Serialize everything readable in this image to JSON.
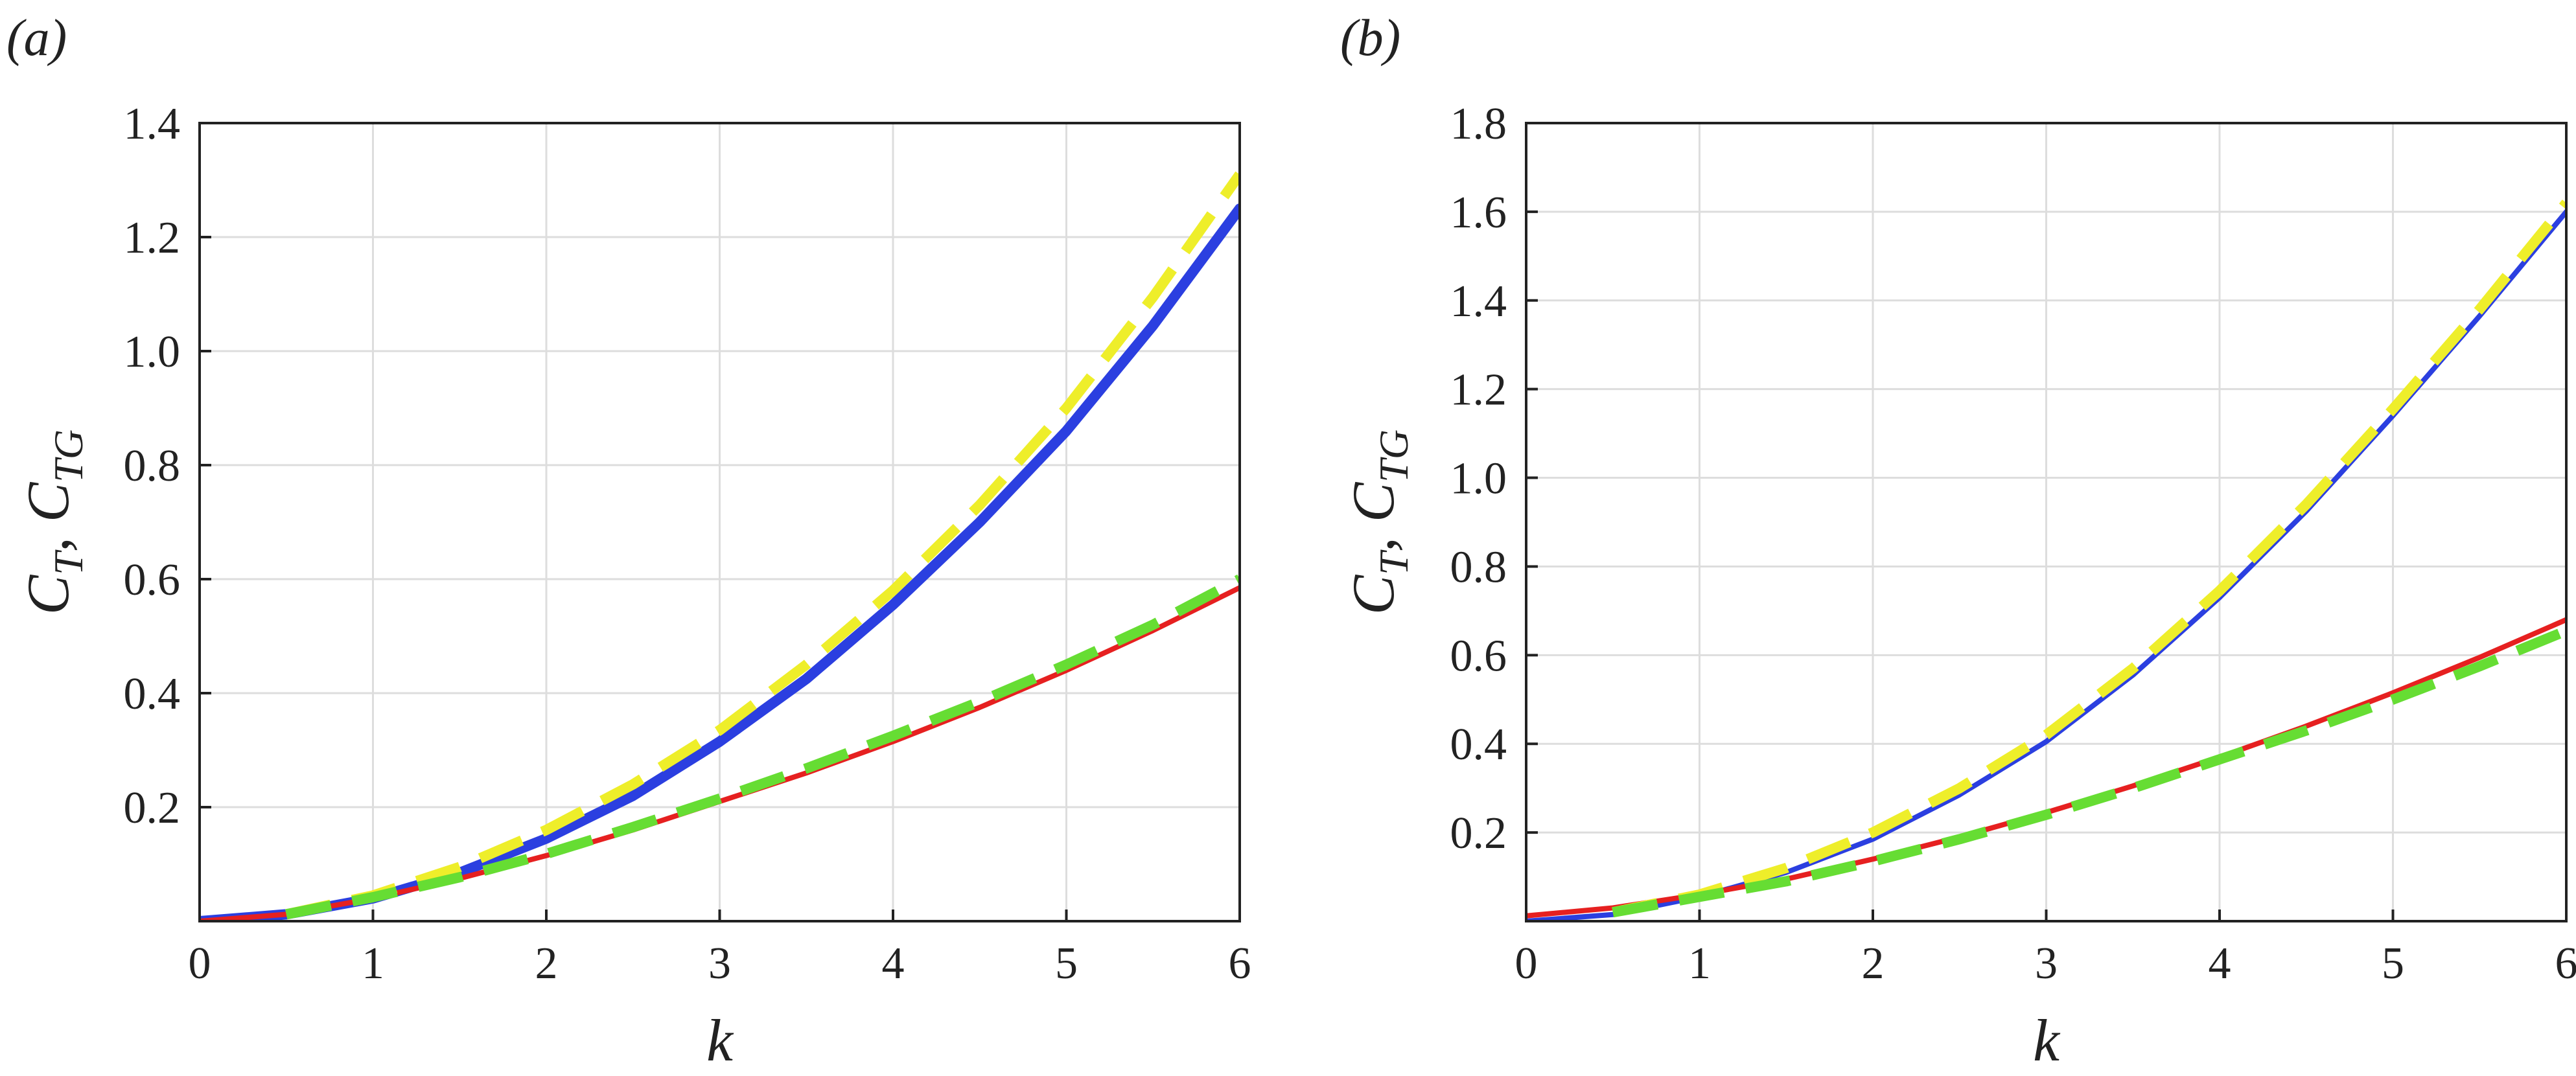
{
  "chart_data": [
    {
      "type": "line",
      "panel_label": "(a)",
      "xlabel": "k",
      "ylabel": {
        "parts": [
          {
            "base": "C",
            "sub": "T"
          },
          {
            "base": ", C",
            "sub": "TG"
          }
        ]
      },
      "xlim": [
        0,
        6
      ],
      "ylim": [
        0,
        1.4
      ],
      "xticks": [
        0,
        1,
        2,
        3,
        4,
        5,
        6
      ],
      "yticks": [
        0.2,
        0.4,
        0.6,
        0.8,
        1.0,
        1.2,
        1.4
      ],
      "xtick_labels": [
        "0",
        "1",
        "2",
        "3",
        "4",
        "5",
        "6"
      ],
      "ytick_labels": [
        "0.2",
        "0.4",
        "0.6",
        "0.8",
        "1.0",
        "1.2",
        "1.4"
      ],
      "grid": true,
      "series": [
        {
          "color": "#2b3fe0",
          "style": "solid",
          "width": 16,
          "x": [
            0,
            0.5,
            1,
            1.5,
            2,
            2.5,
            3,
            3.5,
            4,
            4.5,
            5,
            5.5,
            6
          ],
          "y": [
            0,
            0.012,
            0.04,
            0.085,
            0.145,
            0.22,
            0.315,
            0.425,
            0.555,
            0.7,
            0.86,
            1.045,
            1.25
          ]
        },
        {
          "color": "#e62020",
          "style": "solid",
          "width": 8,
          "x": [
            0,
            0.5,
            1,
            1.5,
            2,
            2.5,
            3,
            3.5,
            4,
            4.5,
            5,
            5.5,
            6
          ],
          "y": [
            0,
            0.012,
            0.04,
            0.075,
            0.115,
            0.16,
            0.21,
            0.26,
            0.315,
            0.375,
            0.44,
            0.51,
            0.585
          ]
        },
        {
          "color": "#eeee2a",
          "style": "dashed",
          "width": 16,
          "x": [
            0.5,
            1,
            1.5,
            2,
            2.5,
            3,
            3.5,
            4,
            4.5,
            5,
            5.5,
            6
          ],
          "y": [
            0.012,
            0.045,
            0.095,
            0.16,
            0.24,
            0.335,
            0.45,
            0.58,
            0.73,
            0.9,
            1.095,
            1.31
          ]
        },
        {
          "color": "#66dd33",
          "style": "dashed",
          "width": 16,
          "x": [
            0.5,
            1,
            1.5,
            2,
            2.5,
            3,
            3.5,
            4,
            4.5,
            5,
            5.5,
            6
          ],
          "y": [
            0.012,
            0.042,
            0.077,
            0.118,
            0.165,
            0.215,
            0.268,
            0.325,
            0.385,
            0.45,
            0.52,
            0.6
          ]
        }
      ]
    },
    {
      "type": "line",
      "panel_label": "(b)",
      "xlabel": "k",
      "ylabel": {
        "parts": [
          {
            "base": "C",
            "sub": "T"
          },
          {
            "base": ", C",
            "sub": "TG"
          }
        ]
      },
      "xlim": [
        0,
        6
      ],
      "ylim": [
        0,
        1.8
      ],
      "xticks": [
        0,
        1,
        2,
        3,
        4,
        5,
        6
      ],
      "yticks": [
        0.2,
        0.4,
        0.6,
        0.8,
        1.0,
        1.2,
        1.4,
        1.6,
        1.8
      ],
      "xtick_labels": [
        "0",
        "1",
        "2",
        "3",
        "4",
        "5",
        "6"
      ],
      "ytick_labels": [
        "0.2",
        "0.4",
        "0.6",
        "0.8",
        "1.0",
        "1.2",
        "1.4",
        "1.6",
        "1.8"
      ],
      "grid": true,
      "series": [
        {
          "color": "#2b3fe0",
          "style": "solid",
          "width": 8,
          "x": [
            0,
            0.5,
            1,
            1.5,
            2,
            2.5,
            3,
            3.5,
            4,
            4.5,
            5,
            5.5,
            6
          ],
          "y": [
            0,
            0.015,
            0.055,
            0.11,
            0.185,
            0.285,
            0.405,
            0.555,
            0.73,
            0.925,
            1.14,
            1.365,
            1.6
          ]
        },
        {
          "color": "#e62020",
          "style": "solid",
          "width": 8,
          "x": [
            0,
            0.5,
            1,
            1.5,
            2,
            2.5,
            3,
            3.5,
            4,
            4.5,
            5,
            5.5,
            6
          ],
          "y": [
            0.012,
            0.03,
            0.06,
            0.095,
            0.14,
            0.19,
            0.245,
            0.305,
            0.37,
            0.44,
            0.515,
            0.595,
            0.68
          ]
        },
        {
          "color": "#eeee2a",
          "style": "dashed",
          "width": 16,
          "x": [
            0.5,
            1,
            1.5,
            2,
            2.5,
            3,
            3.5,
            4,
            4.5,
            5,
            5.5,
            6
          ],
          "y": [
            0.02,
            0.06,
            0.12,
            0.2,
            0.3,
            0.42,
            0.57,
            0.745,
            0.94,
            1.155,
            1.38,
            1.62
          ]
        },
        {
          "color": "#66dd33",
          "style": "dashed",
          "width": 16,
          "x": [
            0.5,
            1,
            1.5,
            2,
            2.5,
            3,
            3.5,
            4,
            4.5,
            5,
            5.5,
            6
          ],
          "y": [
            0.02,
            0.055,
            0.09,
            0.135,
            0.185,
            0.24,
            0.3,
            0.365,
            0.43,
            0.5,
            0.575,
            0.655
          ]
        }
      ]
    }
  ]
}
